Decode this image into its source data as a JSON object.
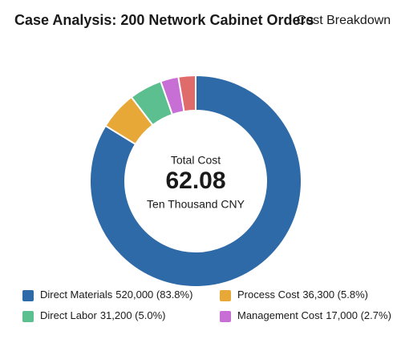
{
  "chart_data": {
    "type": "pie",
    "title": "Case Analysis:  200 Network Cabinet Orders",
    "subtitle": "· Cost Breakdown",
    "center_label": "Total Cost",
    "center_value": "62.08",
    "center_unit": "Ten Thousand CNY",
    "categories": [
      "Direct Materials",
      "Process Cost",
      "Direct Labor",
      "Management Cost",
      null
    ],
    "values": [
      520000,
      36300,
      31200,
      17000,
      16300
    ],
    "value_labels": [
      "520,000 (83.8%)",
      "36,300 (5.8%)",
      "31,200 (5.0%)",
      "17,000 (2.7%)",
      null
    ],
    "colors": [
      "#2f6aa8",
      "#e8a838",
      "#5bbf8f",
      "#c86fd6",
      "#e06b6b"
    ]
  }
}
